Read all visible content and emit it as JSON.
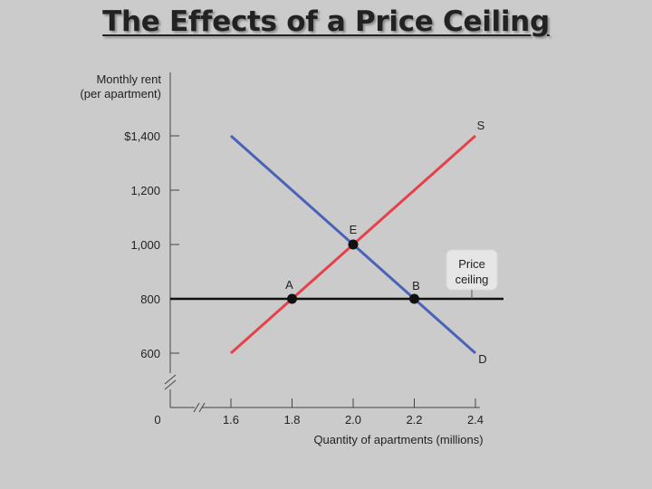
{
  "page": {
    "title": "The Effects of a Price Ceiling"
  },
  "chart_data": {
    "type": "line",
    "title": "The Effects of a Price Ceiling",
    "ylabel_line1": "Monthly rent",
    "ylabel_line2": "(per apartment)",
    "xlabel": "Quantity of apartments (millions)",
    "x_ticks": [
      1.6,
      1.8,
      2.0,
      2.2,
      2.4
    ],
    "x_tick_labels": [
      "1.6",
      "1.8",
      "2.0",
      "2.2",
      "2.4"
    ],
    "y_ticks": [
      600,
      800,
      1000,
      1200,
      1400
    ],
    "y_tick_labels": [
      "600",
      "800",
      "1,000",
      "1,200",
      "$1,400"
    ],
    "origin_label": "0",
    "xlim": [
      1.6,
      2.4
    ],
    "ylim": [
      600,
      1400
    ],
    "axis_breaks": true,
    "series": [
      {
        "name": "S",
        "color": "#e8404a",
        "x": [
          1.6,
          2.4
        ],
        "y": [
          600,
          1400
        ]
      },
      {
        "name": "D",
        "color": "#4a62b8",
        "x": [
          1.6,
          2.4
        ],
        "y": [
          1400,
          600
        ]
      }
    ],
    "price_ceiling": {
      "label_line1": "Price",
      "label_line2": "ceiling",
      "y": 800,
      "color": "#111111"
    },
    "points": [
      {
        "label": "E",
        "x": 2.0,
        "y": 1000
      },
      {
        "label": "A",
        "x": 1.8,
        "y": 800
      },
      {
        "label": "B",
        "x": 2.2,
        "y": 800
      }
    ]
  }
}
